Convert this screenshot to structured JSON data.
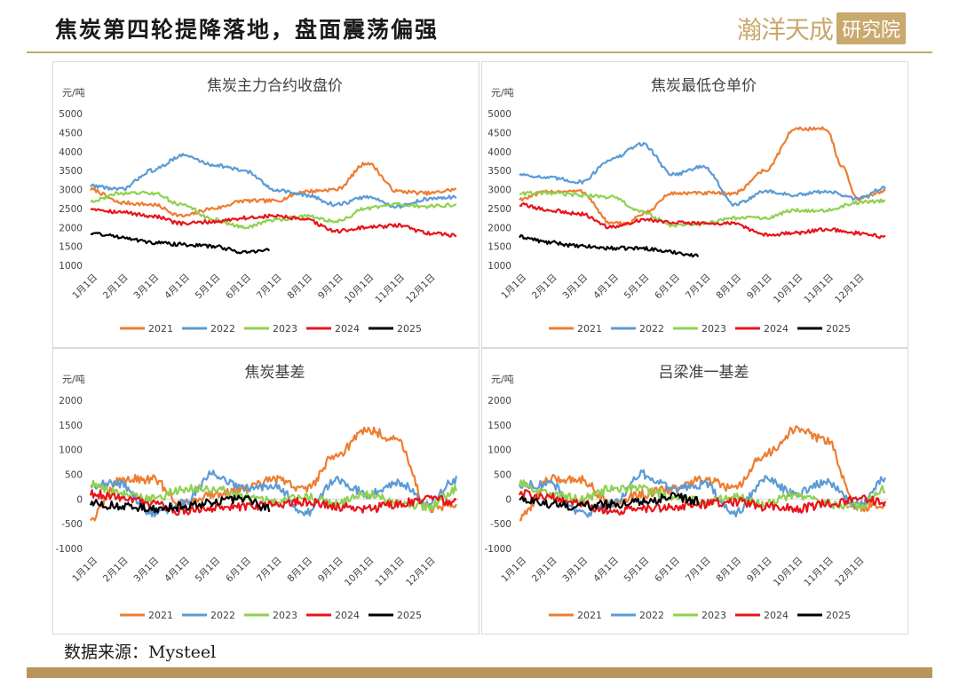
{
  "header": {
    "title": "焦炭第四轮提降落地，盘面震荡偏强",
    "brand_text": "瀚洋天成",
    "brand_stamp": "研究院"
  },
  "source": {
    "label": "数据来源：",
    "value": "Mysteel"
  },
  "colors": {
    "2021": "#ed7d31",
    "2022": "#5b9bd5",
    "2023": "#8fd14f",
    "2024": "#e8141b",
    "2025": "#000000",
    "accent": "#c9a96e"
  },
  "chart_data": [
    {
      "id": "coke-main-contract",
      "type": "line",
      "title": "焦炭主力合约收盘价",
      "unit": "元/吨",
      "ylim": [
        1000,
        5000
      ],
      "yticks": [
        "1000",
        "1500",
        "2000",
        "2500",
        "3000",
        "3500",
        "4000",
        "4500",
        "5000"
      ],
      "x_labels": [
        "1月1日",
        "2月1日",
        "3月1日",
        "4月1日",
        "5月1日",
        "6月1日",
        "7月1日",
        "8月1日",
        "9月1日",
        "10月1日",
        "11月1日",
        "12月1日"
      ],
      "grid": false,
      "legend": "bottom",
      "series": [
        {
          "name": "2021",
          "months": [
            0,
            1,
            2,
            3,
            4,
            5,
            6,
            7,
            8,
            9,
            10,
            11,
            11.9
          ],
          "values": [
            3000,
            2650,
            2600,
            2300,
            2500,
            2700,
            2700,
            2950,
            3000,
            3700,
            2950,
            2900,
            3000
          ]
        },
        {
          "name": "2022",
          "months": [
            0,
            1,
            2,
            3,
            4,
            5,
            6,
            7,
            8,
            9,
            10,
            11,
            11.9
          ],
          "values": [
            3100,
            3000,
            3500,
            3900,
            3650,
            3500,
            3000,
            2850,
            2600,
            2800,
            2550,
            2750,
            2800
          ]
        },
        {
          "name": "2023",
          "months": [
            0,
            1,
            2,
            3,
            4,
            5,
            6,
            7,
            8,
            9,
            10,
            11,
            11.9
          ],
          "values": [
            2700,
            2900,
            2900,
            2600,
            2200,
            2000,
            2200,
            2300,
            2150,
            2500,
            2600,
            2550,
            2600
          ]
        },
        {
          "name": "2024",
          "months": [
            0,
            1,
            2,
            3,
            4,
            5,
            6,
            7,
            8,
            9,
            10,
            11,
            11.9
          ],
          "values": [
            2500,
            2400,
            2300,
            2100,
            2150,
            2250,
            2300,
            2200,
            1900,
            2000,
            2050,
            1850,
            1800
          ]
        },
        {
          "name": "2025",
          "months": [
            0,
            1,
            2,
            3,
            4,
            5,
            5.8
          ],
          "values": [
            1850,
            1750,
            1600,
            1550,
            1500,
            1350,
            1400
          ]
        }
      ]
    },
    {
      "id": "coke-min-warehouse",
      "type": "line",
      "title": "焦炭最低仓单价",
      "unit": "元/吨",
      "ylim": [
        1000,
        5000
      ],
      "yticks": [
        "1000",
        "1500",
        "2000",
        "2500",
        "3000",
        "3500",
        "4000",
        "4500",
        "5000"
      ],
      "x_labels": [
        "1月1日",
        "2月1日",
        "3月1日",
        "4月1日",
        "5月1日",
        "6月1日",
        "7月1日",
        "8月1日",
        "9月1日",
        "10月1日",
        "11月1日",
        "12月1日"
      ],
      "grid": false,
      "legend": "bottom",
      "series": [
        {
          "name": "2021",
          "months": [
            0,
            1,
            2,
            3,
            3.5,
            4,
            5,
            6,
            7,
            8,
            9,
            10,
            10.5,
            11,
            11.9
          ],
          "values": [
            2750,
            2950,
            2950,
            2100,
            2100,
            2350,
            2900,
            2900,
            2900,
            3500,
            4600,
            4600,
            3600,
            2750,
            2950
          ]
        },
        {
          "name": "2022",
          "months": [
            0,
            1,
            2,
            3,
            4,
            5,
            6,
            7,
            8,
            9,
            10,
            11,
            11.9
          ],
          "values": [
            3400,
            3300,
            3200,
            3800,
            4200,
            3400,
            3600,
            2600,
            2950,
            2850,
            2950,
            2750,
            3050
          ]
        },
        {
          "name": "2023",
          "months": [
            0,
            1,
            2,
            3,
            4,
            5,
            6,
            7,
            8,
            9,
            10,
            11,
            11.9
          ],
          "values": [
            2900,
            2900,
            2850,
            2800,
            2400,
            2050,
            2100,
            2250,
            2250,
            2450,
            2450,
            2650,
            2700
          ]
        },
        {
          "name": "2024",
          "months": [
            0,
            1,
            2,
            3,
            4,
            5,
            6,
            7,
            8,
            9,
            10,
            11,
            11.9
          ],
          "values": [
            2600,
            2450,
            2350,
            2000,
            2200,
            2150,
            2100,
            2100,
            1800,
            1850,
            1950,
            1850,
            1750
          ]
        },
        {
          "name": "2025",
          "months": [
            0,
            1,
            2,
            3,
            4,
            5,
            5.8
          ],
          "values": [
            1750,
            1600,
            1500,
            1450,
            1450,
            1350,
            1250
          ]
        }
      ]
    },
    {
      "id": "coke-basis",
      "type": "line",
      "title": "焦炭基差",
      "unit": "元/吨",
      "ylim": [
        -1000,
        2000
      ],
      "yticks": [
        "-1000",
        "-500",
        "0",
        "500",
        "1000",
        "1500",
        "2000"
      ],
      "x_labels": [
        "1月1日",
        "2月1日",
        "3月1日",
        "4月1日",
        "5月1日",
        "6月1日",
        "7月1日",
        "8月1日",
        "9月1日",
        "10月1日",
        "11月1日",
        "12月1日"
      ],
      "grid": false,
      "legend": "bottom",
      "series": [
        {
          "name": "2021",
          "months": [
            0,
            1,
            2,
            3,
            4,
            5,
            6,
            7,
            8,
            9,
            10,
            11,
            11.9
          ],
          "values": [
            -400,
            400,
            400,
            -100,
            100,
            200,
            400,
            200,
            900,
            1400,
            1200,
            -200,
            -100
          ]
        },
        {
          "name": "2022",
          "months": [
            0,
            1,
            2,
            3,
            4,
            5,
            6,
            7,
            8,
            9,
            10,
            11,
            11.9
          ],
          "values": [
            300,
            300,
            -300,
            -100,
            500,
            200,
            300,
            -300,
            400,
            100,
            350,
            -100,
            400
          ]
        },
        {
          "name": "2023",
          "months": [
            0,
            1,
            2,
            3,
            4,
            5,
            6,
            7,
            8,
            9,
            10,
            11,
            11.9
          ],
          "values": [
            300,
            100,
            0,
            200,
            200,
            50,
            -50,
            50,
            -100,
            100,
            -100,
            -150,
            200
          ]
        },
        {
          "name": "2024",
          "months": [
            0,
            1,
            2,
            3,
            4,
            5,
            6,
            7,
            8,
            9,
            10,
            11,
            11.9
          ],
          "values": [
            100,
            50,
            -100,
            -250,
            -200,
            -150,
            -100,
            -50,
            -150,
            -200,
            -100,
            0,
            -50
          ]
        },
        {
          "name": "2025",
          "months": [
            0,
            1,
            2,
            3,
            4,
            5,
            5.8
          ],
          "values": [
            -100,
            -150,
            -200,
            -150,
            -50,
            0,
            -200
          ]
        }
      ]
    },
    {
      "id": "lvliang-basis",
      "type": "line",
      "title": "吕梁准一基差",
      "unit": "元/吨",
      "ylim": [
        -1000,
        2000
      ],
      "yticks": [
        "-1000",
        "-500",
        "0",
        "500",
        "1000",
        "1500",
        "2000"
      ],
      "x_labels": [
        "1月1日",
        "2月1日",
        "3月1日",
        "4月1日",
        "5月1日",
        "6月1日",
        "7月1日",
        "8月1日",
        "9月1日",
        "10月1日",
        "11月1日",
        "12月1日"
      ],
      "grid": false,
      "legend": "bottom",
      "series": [
        {
          "name": "2021",
          "months": [
            0,
            1,
            2,
            3,
            4,
            5,
            6,
            7,
            8,
            9,
            10,
            11,
            11.9
          ],
          "values": [
            -400,
            400,
            400,
            -100,
            100,
            200,
            400,
            200,
            900,
            1400,
            1200,
            -200,
            -100
          ]
        },
        {
          "name": "2022",
          "months": [
            0,
            1,
            2,
            3,
            4,
            5,
            6,
            7,
            8,
            9,
            10,
            11,
            11.9
          ],
          "values": [
            300,
            300,
            -300,
            -100,
            500,
            200,
            300,
            -300,
            400,
            100,
            350,
            -100,
            400
          ]
        },
        {
          "name": "2023",
          "months": [
            0,
            1,
            2,
            3,
            4,
            5,
            6,
            7,
            8,
            9,
            10,
            11,
            11.9
          ],
          "values": [
            300,
            100,
            0,
            200,
            200,
            50,
            -50,
            50,
            -100,
            100,
            -100,
            -150,
            200
          ]
        },
        {
          "name": "2024",
          "months": [
            0,
            1,
            2,
            3,
            4,
            5,
            6,
            7,
            8,
            9,
            10,
            11,
            11.9
          ],
          "values": [
            100,
            50,
            -100,
            -250,
            -200,
            -150,
            -100,
            -50,
            -150,
            -200,
            -100,
            0,
            -50
          ]
        },
        {
          "name": "2025",
          "months": [
            0,
            1,
            2,
            3,
            4,
            5,
            5.8
          ],
          "values": [
            0,
            -100,
            -150,
            -100,
            -50,
            50,
            -50
          ]
        }
      ]
    }
  ]
}
